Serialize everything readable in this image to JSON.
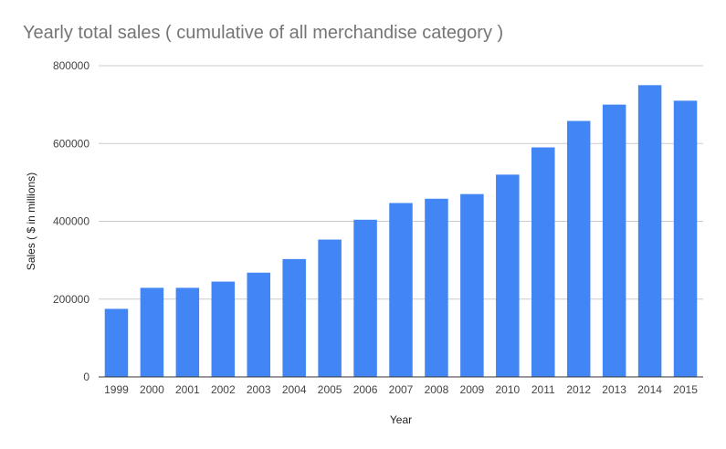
{
  "chart_data": {
    "type": "bar",
    "title": "Yearly total sales ( cumulative of all merchandise category )",
    "xlabel": "Year",
    "ylabel": "Sales ( $ in millions)",
    "categories": [
      "1999",
      "2000",
      "2001",
      "2002",
      "2003",
      "2004",
      "2005",
      "2006",
      "2007",
      "2008",
      "2009",
      "2010",
      "2011",
      "2012",
      "2013",
      "2014",
      "2015"
    ],
    "values": [
      175000,
      229000,
      229000,
      245000,
      268000,
      303000,
      353000,
      404000,
      447000,
      458000,
      470000,
      520000,
      590000,
      658000,
      700000,
      750000,
      710000
    ],
    "ylim": [
      0,
      800000
    ],
    "yticks": [
      "0",
      "200000",
      "400000",
      "600000",
      "800000"
    ],
    "ytick_values": [
      0,
      200000,
      400000,
      600000,
      800000
    ],
    "grid": true,
    "legend": "none",
    "colors": {
      "bar": "#4285f4",
      "grid": "#cccccc",
      "axis": "#333333"
    }
  }
}
